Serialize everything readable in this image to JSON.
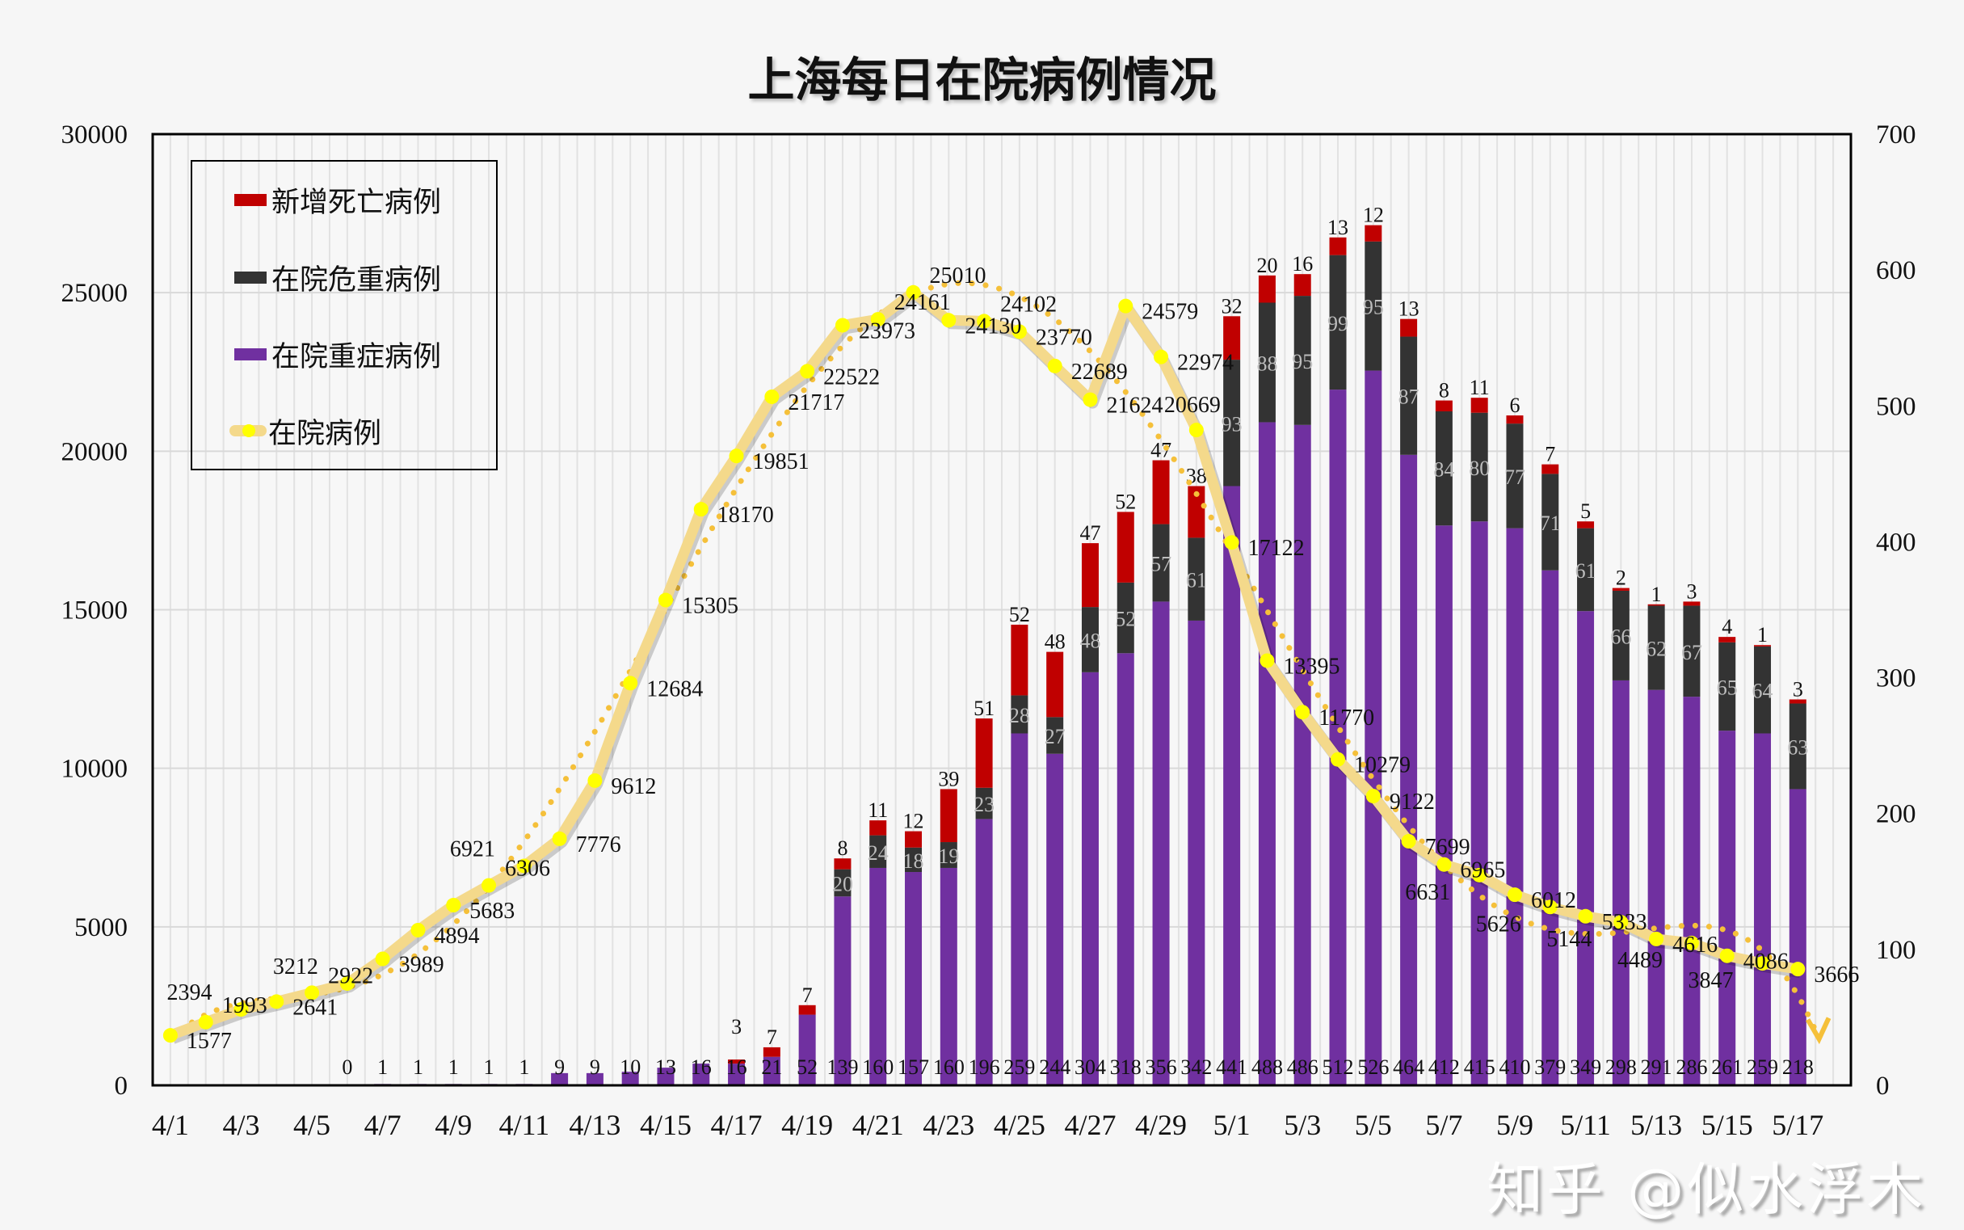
{
  "title": "上海每日在院病例情况",
  "legend": [
    {
      "label": "新增死亡病例",
      "color": "#c00000"
    },
    {
      "label": "在院危重病例",
      "color": "#333333"
    },
    {
      "label": "在院重症病例",
      "color": "#7030a0"
    },
    {
      "label": "在院病例",
      "color": "#f4d98b"
    }
  ],
  "watermark": "知乎 @似水浮木",
  "chart_data": {
    "type": "bar",
    "title": "上海每日在院病例情况",
    "categories": [
      "4/1",
      "4/2",
      "4/3",
      "4/4",
      "4/5",
      "4/6",
      "4/7",
      "4/8",
      "4/9",
      "4/10",
      "4/11",
      "4/12",
      "4/13",
      "4/14",
      "4/15",
      "4/16",
      "4/17",
      "4/18",
      "4/19",
      "4/20",
      "4/21",
      "4/22",
      "4/23",
      "4/24",
      "4/25",
      "4/26",
      "4/27",
      "4/28",
      "4/29",
      "4/30",
      "5/1",
      "5/2",
      "5/3",
      "5/4",
      "5/5",
      "5/6",
      "5/7",
      "5/8",
      "5/9",
      "5/10",
      "5/11",
      "5/12",
      "5/13",
      "5/14",
      "5/15",
      "5/16",
      "5/17"
    ],
    "x_tick_labels": [
      "4/1",
      "4/3",
      "4/5",
      "4/7",
      "4/9",
      "4/11",
      "4/13",
      "4/15",
      "4/17",
      "4/19",
      "4/21",
      "4/23",
      "4/25",
      "4/27",
      "4/29",
      "5/1",
      "5/3",
      "5/5",
      "5/7",
      "5/9",
      "5/11",
      "5/13",
      "5/15",
      "5/17"
    ],
    "y_left": {
      "range": [
        0,
        30000
      ],
      "ticks": [
        "0",
        "5000",
        "10000",
        "15000",
        "20000",
        "25000",
        "30000"
      ]
    },
    "y_right": {
      "range": [
        0,
        700
      ],
      "ticks": [
        "0",
        "100",
        "200",
        "300",
        "400",
        "500",
        "600",
        "700"
      ]
    },
    "grid": true,
    "legend_position": "top-left",
    "series": [
      {
        "name": "在院重症病例",
        "type": "stacked-bar",
        "axis": "right",
        "color": "#7030a0",
        "values": [
          null,
          null,
          null,
          null,
          null,
          0,
          1,
          1,
          1,
          1,
          1,
          9,
          9,
          10,
          13,
          16,
          16,
          21,
          52,
          139,
          160,
          157,
          160,
          196,
          259,
          244,
          304,
          318,
          356,
          342,
          441,
          488,
          486,
          512,
          526,
          464,
          412,
          415,
          410,
          379,
          349,
          298,
          291,
          286,
          261,
          259,
          218
        ]
      },
      {
        "name": "在院危重病例",
        "type": "stacked-bar",
        "axis": "right",
        "color": "#333333",
        "values": [
          null,
          null,
          null,
          null,
          null,
          null,
          null,
          null,
          null,
          null,
          null,
          null,
          null,
          null,
          null,
          null,
          null,
          null,
          null,
          20,
          24,
          18,
          19,
          23,
          28,
          27,
          48,
          52,
          57,
          61,
          93,
          88,
          95,
          99,
          95,
          87,
          84,
          80,
          77,
          71,
          61,
          66,
          62,
          67,
          65,
          64,
          63
        ]
      },
      {
        "name": "新增死亡病例",
        "type": "stacked-bar",
        "axis": "right",
        "color": "#c00000",
        "values": [
          null,
          null,
          null,
          null,
          null,
          null,
          null,
          null,
          null,
          null,
          null,
          null,
          null,
          null,
          null,
          null,
          3,
          7,
          7,
          8,
          11,
          12,
          39,
          51,
          52,
          48,
          47,
          52,
          47,
          38,
          32,
          20,
          16,
          13,
          12,
          13,
          8,
          11,
          6,
          7,
          5,
          2,
          1,
          3,
          4,
          1,
          3
        ]
      },
      {
        "name": "在院病例",
        "type": "line",
        "axis": "left",
        "color": "#f4d98b",
        "marker_color": "#ffff00",
        "trendline": "polynomial",
        "values": [
          1577,
          1993,
          2394,
          2641,
          2922,
          3212,
          3989,
          4894,
          5683,
          6306,
          6921,
          7776,
          9612,
          12684,
          15305,
          18170,
          19851,
          21717,
          22522,
          23973,
          24161,
          25010,
          24130,
          24102,
          23770,
          22689,
          21624,
          24579,
          22974,
          20669,
          17122,
          13395,
          11770,
          10279,
          9122,
          7699,
          6965,
          6631,
          6012,
          5626,
          5333,
          5144,
          4616,
          4489,
          4086,
          3847,
          3666
        ]
      }
    ]
  }
}
